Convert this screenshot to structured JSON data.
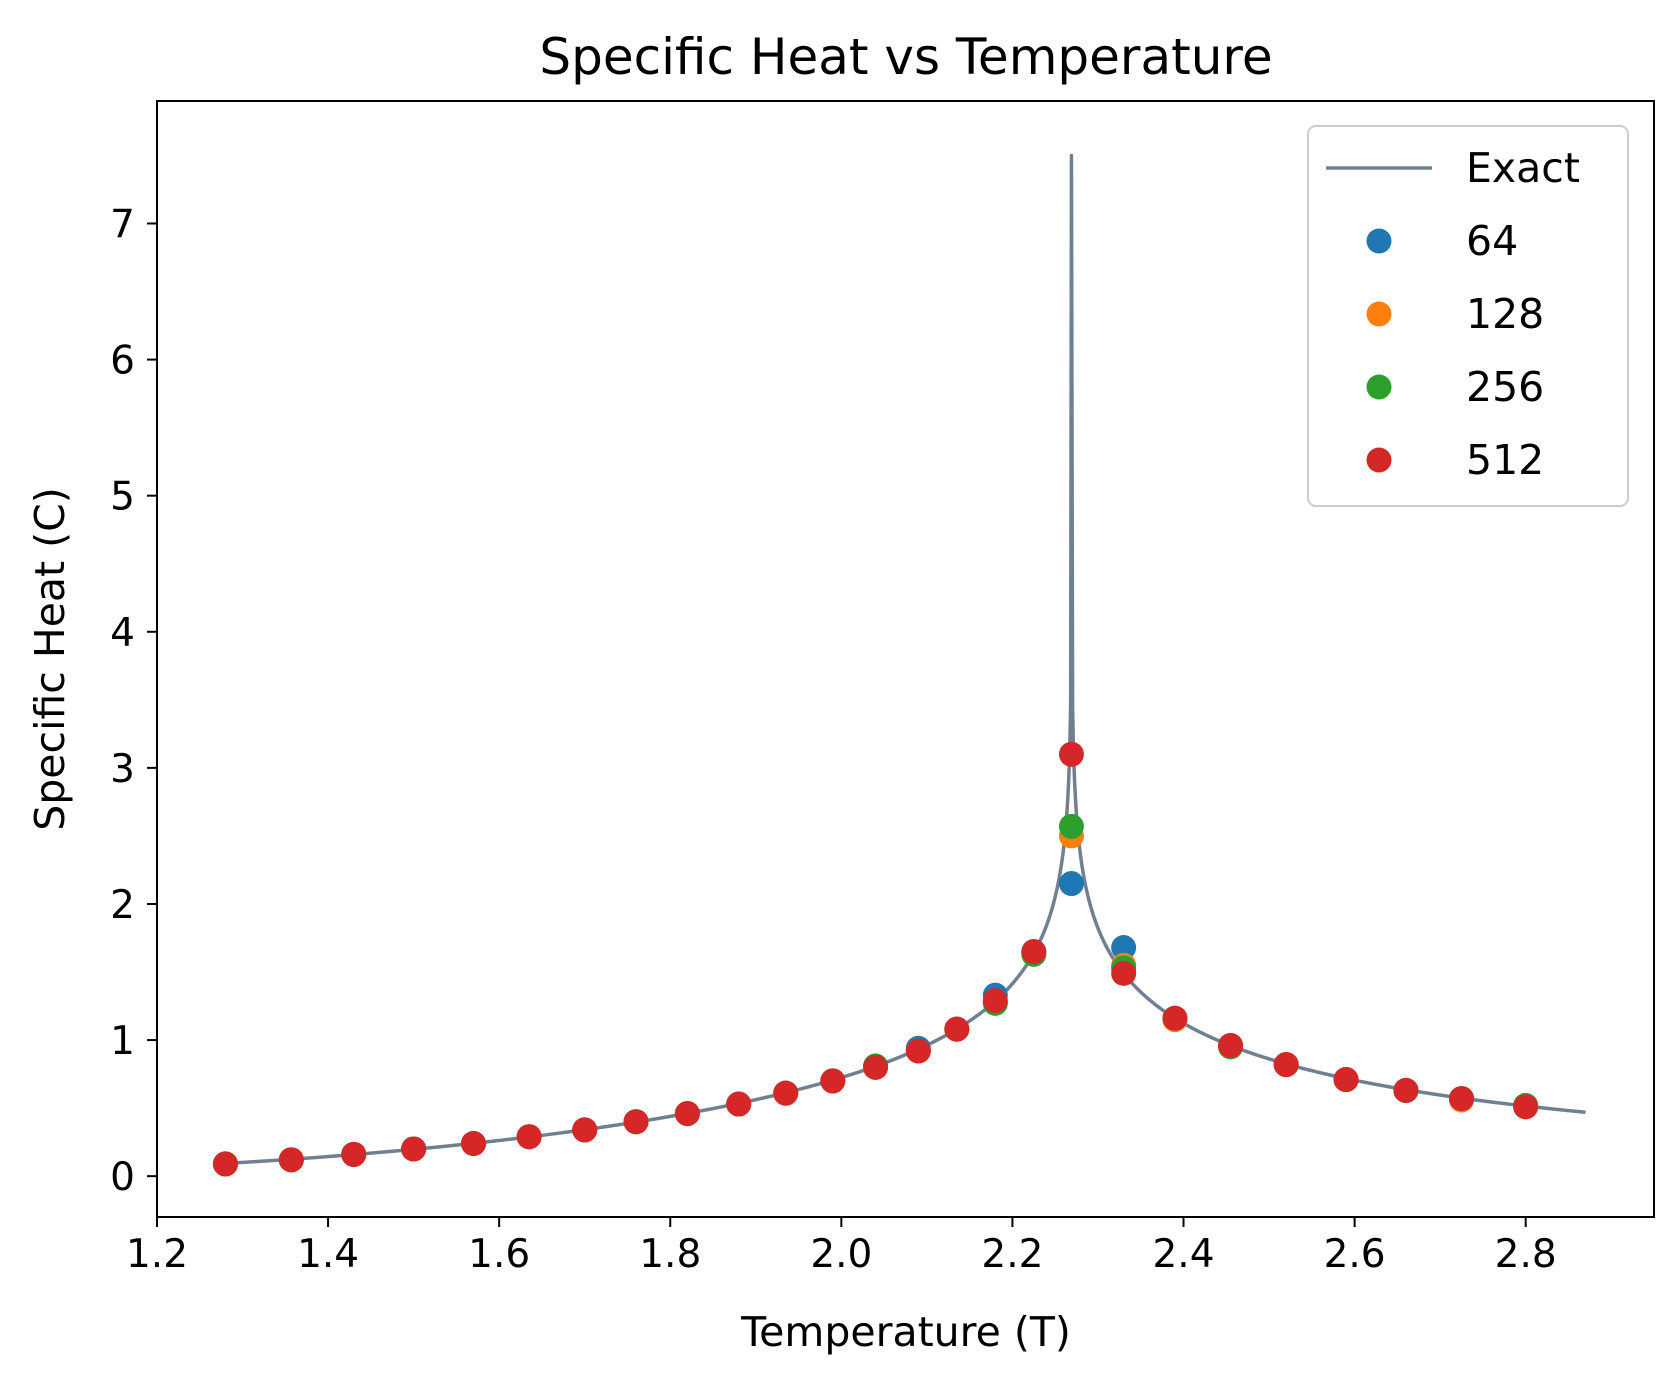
{
  "chart_data": {
    "type": "scatter",
    "title": "Specific Heat vs Temperature",
    "xlabel": "Temperature (T)",
    "ylabel": "Specific Heat (C)",
    "xlim": [
      1.2,
      2.95
    ],
    "ylim": [
      -0.3,
      7.9
    ],
    "xticks": [
      "1.2",
      "1.4",
      "1.6",
      "1.8",
      "2.0",
      "2.2",
      "2.4",
      "2.6",
      "2.8"
    ],
    "yticks": [
      "0",
      "1",
      "2",
      "3",
      "4",
      "5",
      "6",
      "7"
    ],
    "grid": false,
    "legend_position": "top-right",
    "line_series": {
      "name": "Exact",
      "color": "#708090",
      "x_range": [
        1.28,
        2.87
      ],
      "critical_T": 2.269,
      "peak_C": 7.5
    },
    "series": [
      {
        "name": "64",
        "color": "#1f77b4",
        "x": [
          1.28,
          1.357,
          1.43,
          1.5,
          1.57,
          1.635,
          1.7,
          1.76,
          1.82,
          1.88,
          1.935,
          1.99,
          2.04,
          2.09,
          2.135,
          2.18,
          2.225,
          2.269,
          2.33,
          2.39,
          2.455,
          2.52,
          2.59,
          2.66,
          2.725,
          2.8
        ],
        "y": [
          0.09,
          0.12,
          0.16,
          0.2,
          0.24,
          0.29,
          0.34,
          0.4,
          0.46,
          0.53,
          0.61,
          0.7,
          0.8,
          0.94,
          1.08,
          1.33,
          1.65,
          2.15,
          1.68,
          1.16,
          0.96,
          0.82,
          0.71,
          0.63,
          0.57,
          0.51
        ]
      },
      {
        "name": "128",
        "color": "#ff7f0e",
        "x": [
          1.28,
          1.357,
          1.43,
          1.5,
          1.57,
          1.635,
          1.7,
          1.76,
          1.82,
          1.88,
          1.935,
          1.99,
          2.04,
          2.09,
          2.135,
          2.18,
          2.225,
          2.269,
          2.33,
          2.39,
          2.455,
          2.52,
          2.59,
          2.66,
          2.725,
          2.8
        ],
        "y": [
          0.09,
          0.12,
          0.16,
          0.2,
          0.24,
          0.29,
          0.34,
          0.4,
          0.46,
          0.53,
          0.61,
          0.7,
          0.8,
          0.92,
          1.08,
          1.28,
          1.64,
          2.5,
          1.55,
          1.15,
          0.96,
          0.82,
          0.71,
          0.63,
          0.56,
          0.51
        ]
      },
      {
        "name": "256",
        "color": "#2ca02c",
        "x": [
          1.28,
          1.357,
          1.43,
          1.5,
          1.57,
          1.635,
          1.7,
          1.76,
          1.82,
          1.88,
          1.935,
          1.99,
          2.04,
          2.09,
          2.135,
          2.18,
          2.225,
          2.269,
          2.33,
          2.39,
          2.455,
          2.52,
          2.59,
          2.66,
          2.725,
          2.8
        ],
        "y": [
          0.09,
          0.12,
          0.16,
          0.2,
          0.24,
          0.29,
          0.34,
          0.4,
          0.46,
          0.53,
          0.61,
          0.7,
          0.81,
          0.92,
          1.08,
          1.27,
          1.63,
          2.57,
          1.53,
          1.16,
          0.95,
          0.82,
          0.71,
          0.63,
          0.57,
          0.52
        ]
      },
      {
        "name": "512",
        "color": "#d62728",
        "x": [
          1.28,
          1.357,
          1.43,
          1.5,
          1.57,
          1.635,
          1.7,
          1.76,
          1.82,
          1.88,
          1.935,
          1.99,
          2.04,
          2.09,
          2.135,
          2.18,
          2.225,
          2.269,
          2.33,
          2.39,
          2.455,
          2.52,
          2.59,
          2.66,
          2.725,
          2.8
        ],
        "y": [
          0.09,
          0.12,
          0.16,
          0.2,
          0.24,
          0.29,
          0.34,
          0.4,
          0.46,
          0.53,
          0.61,
          0.7,
          0.8,
          0.92,
          1.08,
          1.29,
          1.65,
          3.1,
          1.49,
          1.16,
          0.96,
          0.82,
          0.71,
          0.63,
          0.57,
          0.51
        ]
      }
    ]
  }
}
